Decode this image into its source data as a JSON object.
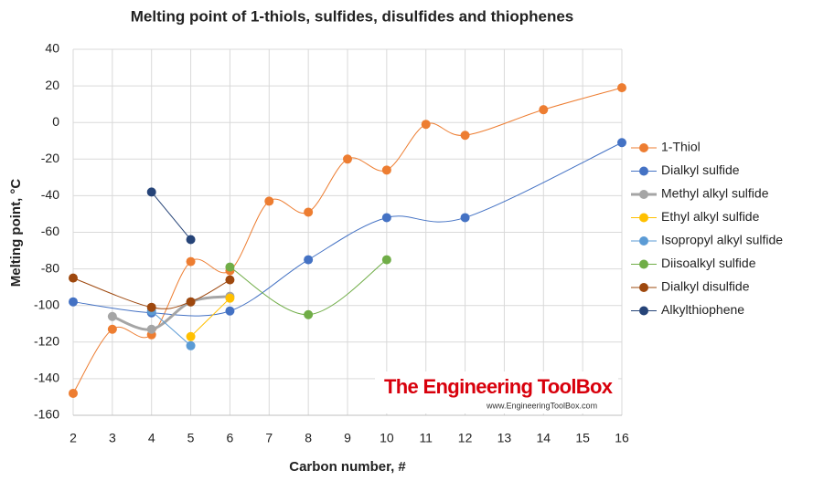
{
  "chart_data": {
    "type": "line",
    "title": "Melting point of 1-thiols, sulfides, disulfides and thiophenes",
    "xlabel": "Carbon number, #",
    "ylabel": "Melting point, °C",
    "xlim": [
      2,
      16
    ],
    "xticks": [
      2,
      3,
      4,
      5,
      6,
      7,
      8,
      9,
      10,
      11,
      12,
      13,
      14,
      15,
      16
    ],
    "ylim": [
      -160,
      40
    ],
    "yticks": [
      -160,
      -140,
      -120,
      -100,
      -80,
      -60,
      -40,
      -20,
      0,
      20,
      40
    ],
    "grid": true,
    "legend": "right",
    "watermark": [
      "The Engineering ToolBox",
      "www.EngineeringToolBox.com"
    ],
    "series": [
      {
        "name": "1-Thiol",
        "color": "#ed7d31",
        "x": [
          2,
          3,
          4,
          5,
          6,
          7,
          8,
          9,
          10,
          11,
          12,
          14,
          16
        ],
        "values": [
          -148,
          -113,
          -116,
          -76,
          -81,
          -43,
          -49,
          -20,
          -26,
          -1,
          -7,
          7,
          19
        ]
      },
      {
        "name": "Dialkyl sulfide",
        "color": "#4472c4",
        "x": [
          2,
          4,
          6,
          8,
          10,
          12,
          16
        ],
        "values": [
          -98,
          -104,
          -103,
          -75,
          -52,
          -52,
          -11
        ]
      },
      {
        "name": "Methyl alkyl sulfide",
        "color": "#a5a5a5",
        "x": [
          3,
          4,
          5,
          6
        ],
        "values": [
          -106,
          -113,
          -98,
          -95
        ]
      },
      {
        "name": "Ethyl alkyl sulfide",
        "color": "#ffc000",
        "x": [
          5,
          6
        ],
        "values": [
          -117,
          -96
        ]
      },
      {
        "name": "Isopropyl alkyl sulfide",
        "color": "#5b9bd5",
        "x": [
          4,
          5
        ],
        "values": [
          -103,
          -122
        ]
      },
      {
        "name": "Diisoalkyl sulfide",
        "color": "#70ad47",
        "x": [
          6,
          8,
          10
        ],
        "values": [
          -79,
          -105,
          -75
        ]
      },
      {
        "name": "Dialkyl disulfide",
        "color": "#9e480e",
        "x": [
          2,
          4,
          5,
          6
        ],
        "values": [
          -85,
          -101,
          -98,
          -86
        ]
      },
      {
        "name": "Alkylthiophene",
        "color": "#264478",
        "x": [
          4,
          5
        ],
        "values": [
          -38,
          -64
        ]
      }
    ]
  }
}
